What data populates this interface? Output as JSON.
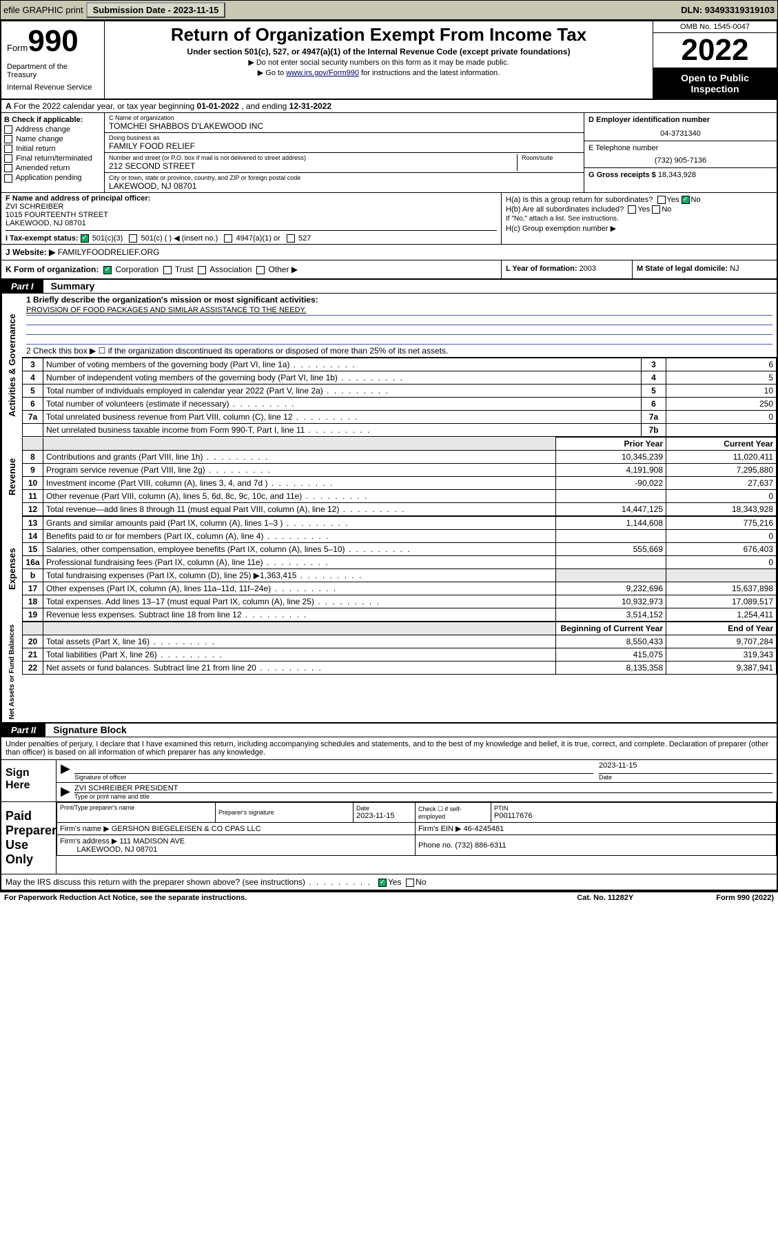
{
  "topbar": {
    "efile": "efile GRAPHIC print",
    "submission_label": "Submission Date - ",
    "submission_date": "2023-11-15",
    "dln_label": "DLN: ",
    "dln": "93493319319103"
  },
  "header": {
    "form_prefix": "Form",
    "form_number": "990",
    "dept": "Department of the Treasury",
    "irs": "Internal Revenue Service",
    "title": "Return of Organization Exempt From Income Tax",
    "sub1": "Under section 501(c), 527, or 4947(a)(1) of the Internal Revenue Code (except private foundations)",
    "sub2": "Do not enter social security numbers on this form as it may be made public.",
    "sub3_pre": "Go to ",
    "sub3_link": "www.irs.gov/Form990",
    "sub3_post": " for instructions and the latest information.",
    "omb": "OMB No. 1545-0047",
    "year": "2022",
    "inspection": "Open to Public Inspection"
  },
  "row_a": {
    "prefix_a": "A",
    "text": " For the 2022 calendar year, or tax year beginning ",
    "begin": "01-01-2022",
    "mid": " , and ending ",
    "end": "12-31-2022"
  },
  "col_b": {
    "label": "B Check if applicable:",
    "items": [
      "Address change",
      "Name change",
      "Initial return",
      "Final return/terminated",
      "Amended return",
      "Application pending"
    ]
  },
  "col_c": {
    "name_lbl": "C Name of organization",
    "name": "TOMCHEI SHABBOS D'LAKEWOOD INC",
    "dba_lbl": "Doing business as",
    "dba": "FAMILY FOOD RELIEF",
    "addr_lbl": "Number and street (or P.O. box if mail is not delivered to street address)",
    "room_lbl": "Room/suite",
    "addr": "212 SECOND STREET",
    "city_lbl": "City or town, state or province, country, and ZIP or foreign postal code",
    "city": "LAKEWOOD, NJ  08701"
  },
  "col_d": {
    "ein_lbl": "D Employer identification number",
    "ein": "04-3731340",
    "phone_lbl": "E Telephone number",
    "phone": "(732) 905-7136",
    "gross_lbl": "G Gross receipts $ ",
    "gross": "18,343,928"
  },
  "col_f": {
    "lbl": "F Name and address of principal officer:",
    "name": "ZVI SCHREIBER",
    "addr1": "1015 FOURTEENTH STREET",
    "addr2": "LAKEWOOD, NJ  08701"
  },
  "col_h": {
    "ha": "H(a)  Is this a group return for subordinates?",
    "hb": "H(b)  Are all subordinates included?",
    "hb_note": "If \"No,\" attach a list. See instructions.",
    "hc": "H(c)  Group exemption number ▶",
    "yes": "Yes",
    "no": "No"
  },
  "row_i": {
    "lbl": "I  Tax-exempt status:",
    "opts": [
      "501(c)(3)",
      "501(c) (  ) ◀ (insert no.)",
      "4947(a)(1) or",
      "527"
    ]
  },
  "row_j": {
    "lbl": "J  Website: ▶ ",
    "val": "FAMILYFOODRELIEF.ORG"
  },
  "row_k": {
    "lbl": "K Form of organization:",
    "opts": [
      "Corporation",
      "Trust",
      "Association",
      "Other ▶"
    ],
    "year_lbl": "L Year of formation: ",
    "year": "2003",
    "dom_lbl": "M State of legal domicile: ",
    "dom": "NJ"
  },
  "part1": {
    "hdr": "Part I",
    "title": "Summary",
    "q1": "1  Briefly describe the organization's mission or most significant activities:",
    "mission": "PROVISION OF FOOD PACKAGES AND SIMILAR ASSISTANCE TO THE NEEDY.",
    "q2": "2   Check this box ▶ ☐  if the organization discontinued its operations or disposed of more than 25% of its net assets.",
    "governance_rows": [
      {
        "n": "3",
        "desc": "Number of voting members of the governing body (Part VI, line 1a)",
        "box": "3",
        "val": "6"
      },
      {
        "n": "4",
        "desc": "Number of independent voting members of the governing body (Part VI, line 1b)",
        "box": "4",
        "val": "5"
      },
      {
        "n": "5",
        "desc": "Total number of individuals employed in calendar year 2022 (Part V, line 2a)",
        "box": "5",
        "val": "10"
      },
      {
        "n": "6",
        "desc": "Total number of volunteers (estimate if necessary)",
        "box": "6",
        "val": "250"
      },
      {
        "n": "7a",
        "desc": "Total unrelated business revenue from Part VIII, column (C), line 12",
        "box": "7a",
        "val": "0"
      },
      {
        "n": "",
        "desc": "Net unrelated business taxable income from Form 990-T, Part I, line 11",
        "box": "7b",
        "val": ""
      }
    ],
    "prior_hdr": "Prior Year",
    "current_hdr": "Current Year",
    "revenue_rows": [
      {
        "n": "8",
        "desc": "Contributions and grants (Part VIII, line 1h)",
        "prior": "10,345,239",
        "curr": "11,020,411"
      },
      {
        "n": "9",
        "desc": "Program service revenue (Part VIII, line 2g)",
        "prior": "4,191,908",
        "curr": "7,295,880"
      },
      {
        "n": "10",
        "desc": "Investment income (Part VIII, column (A), lines 3, 4, and 7d )",
        "prior": "-90,022",
        "curr": "27,637"
      },
      {
        "n": "11",
        "desc": "Other revenue (Part VIII, column (A), lines 5, 6d, 8c, 9c, 10c, and 11e)",
        "prior": "",
        "curr": "0"
      },
      {
        "n": "12",
        "desc": "Total revenue—add lines 8 through 11 (must equal Part VIII, column (A), line 12)",
        "prior": "14,447,125",
        "curr": "18,343,928"
      }
    ],
    "expense_rows": [
      {
        "n": "13",
        "desc": "Grants and similar amounts paid (Part IX, column (A), lines 1–3 )",
        "prior": "1,144,608",
        "curr": "775,216"
      },
      {
        "n": "14",
        "desc": "Benefits paid to or for members (Part IX, column (A), line 4)",
        "prior": "",
        "curr": "0"
      },
      {
        "n": "15",
        "desc": "Salaries, other compensation, employee benefits (Part IX, column (A), lines 5–10)",
        "prior": "555,669",
        "curr": "676,403"
      },
      {
        "n": "16a",
        "desc": "Professional fundraising fees (Part IX, column (A), line 11e)",
        "prior": "",
        "curr": "0"
      },
      {
        "n": "b",
        "desc": "Total fundraising expenses (Part IX, column (D), line 25) ▶1,363,415",
        "prior": "shaded",
        "curr": "shaded"
      },
      {
        "n": "17",
        "desc": "Other expenses (Part IX, column (A), lines 11a–11d, 11f–24e)",
        "prior": "9,232,696",
        "curr": "15,637,898"
      },
      {
        "n": "18",
        "desc": "Total expenses. Add lines 13–17 (must equal Part IX, column (A), line 25)",
        "prior": "10,932,973",
        "curr": "17,089,517"
      },
      {
        "n": "19",
        "desc": "Revenue less expenses. Subtract line 18 from line 12",
        "prior": "3,514,152",
        "curr": "1,254,411"
      }
    ],
    "beg_hdr": "Beginning of Current Year",
    "end_hdr": "End of Year",
    "net_rows": [
      {
        "n": "20",
        "desc": "Total assets (Part X, line 16)",
        "prior": "8,550,433",
        "curr": "9,707,284"
      },
      {
        "n": "21",
        "desc": "Total liabilities (Part X, line 26)",
        "prior": "415,075",
        "curr": "319,343"
      },
      {
        "n": "22",
        "desc": "Net assets or fund balances. Subtract line 21 from line 20",
        "prior": "8,135,358",
        "curr": "9,387,941"
      }
    ],
    "side_governance": "Activities & Governance",
    "side_revenue": "Revenue",
    "side_expenses": "Expenses",
    "side_net": "Net Assets or Fund Balances"
  },
  "part2": {
    "hdr": "Part II",
    "title": "Signature Block",
    "decl": "Under penalties of perjury, I declare that I have examined this return, including accompanying schedules and statements, and to the best of my knowledge and belief, it is true, correct, and complete. Declaration of preparer (other than officer) is based on all information of which preparer has any knowledge.",
    "sign_here": "Sign Here",
    "sig_officer": "Signature of officer",
    "sig_date": "2023-11-15",
    "date_lbl": "Date",
    "officer_name": "ZVI SCHREIBER PRESIDENT",
    "type_name": "Type or print name and title",
    "paid_prep": "Paid Preparer Use Only",
    "prep_name_lbl": "Print/Type preparer's name",
    "prep_sig_lbl": "Preparer's signature",
    "prep_date_lbl": "Date",
    "prep_date": "2023-11-15",
    "self_emp": "Check ☐ if self-employed",
    "ptin_lbl": "PTIN",
    "ptin": "P00117676",
    "firm_name_lbl": "Firm's name    ▶",
    "firm_name": "GERSHON BIEGELEISEN & CO CPAS LLC",
    "firm_ein_lbl": "Firm's EIN ▶",
    "firm_ein": "46-4245481",
    "firm_addr_lbl": "Firm's address ▶",
    "firm_addr1": "111 MADISON AVE",
    "firm_addr2": "LAKEWOOD, NJ  08701",
    "firm_phone_lbl": "Phone no. ",
    "firm_phone": "(732) 886-6311",
    "discuss": "May the IRS discuss this return with the preparer shown above? (see instructions)",
    "yes": "Yes",
    "no": "No"
  },
  "footer": {
    "left": "For Paperwork Reduction Act Notice, see the separate instructions.",
    "mid": "Cat. No. 11282Y",
    "right": "Form 990 (2022)"
  }
}
